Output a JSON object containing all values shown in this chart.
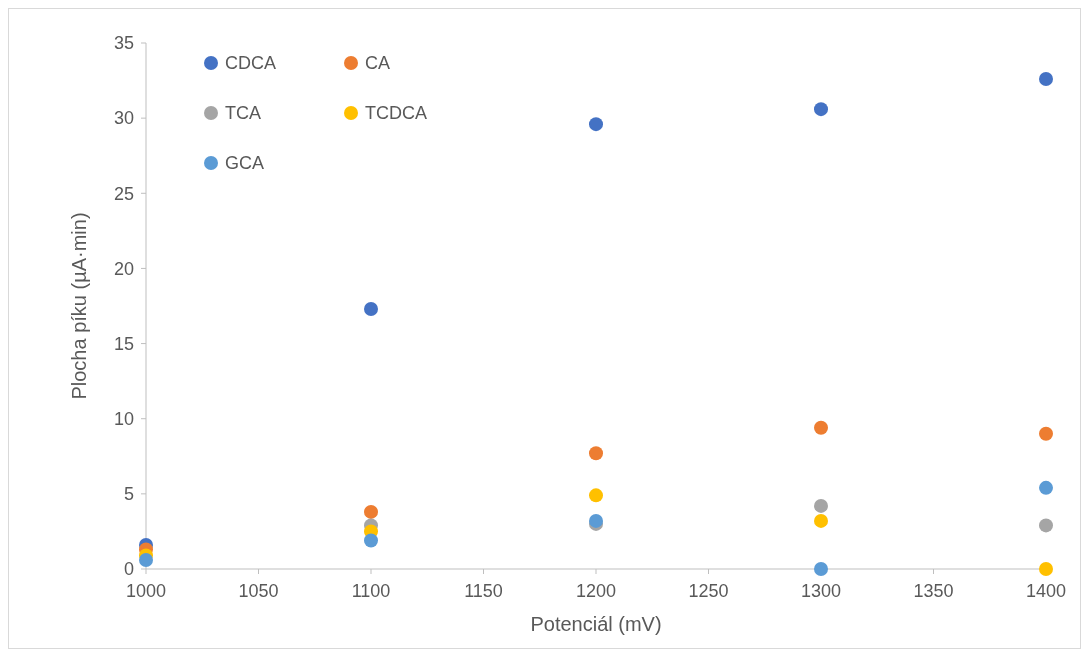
{
  "chart_data": {
    "type": "scatter",
    "xlabel": "Potenciál (mV)",
    "ylabel": "Plocha píku (µA·min)",
    "x": [
      1000,
      1100,
      1200,
      1300,
      1400
    ],
    "series": [
      {
        "name": "CDCA",
        "color": "#4472c4",
        "values": [
          1.6,
          17.3,
          29.6,
          30.6,
          32.6
        ]
      },
      {
        "name": "CA",
        "color": "#ed7d31",
        "values": [
          1.3,
          3.8,
          7.7,
          9.4,
          9.0
        ]
      },
      {
        "name": "TCA",
        "color": "#a5a5a5",
        "values": [
          null,
          2.9,
          3.0,
          4.2,
          2.9
        ]
      },
      {
        "name": "TCDCA",
        "color": "#ffc000",
        "values": [
          0.9,
          2.5,
          4.9,
          3.2,
          0
        ]
      },
      {
        "name": "GCA",
        "color": "#5b9bd5",
        "values": [
          0.6,
          1.9,
          3.2,
          0,
          5.4
        ]
      }
    ],
    "xlim": [
      1000,
      1400
    ],
    "xticks": [
      1000,
      1050,
      1100,
      1150,
      1200,
      1250,
      1300,
      1350,
      1400
    ],
    "ylim": [
      0,
      35
    ],
    "yticks": [
      0,
      5,
      10,
      15,
      20,
      25,
      30,
      35
    ],
    "grid": false,
    "legend": "top left",
    "marker": "circle"
  }
}
